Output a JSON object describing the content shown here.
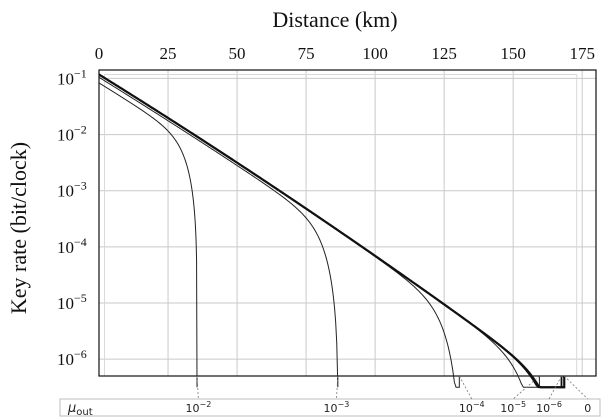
{
  "chart_data": {
    "type": "line",
    "xlabel": "Distance (km)",
    "ylabel": "Key rate (bit/clock)",
    "xlim": [
      0,
      180
    ],
    "ylim_log10": [
      -6.3,
      -0.85
    ],
    "log_y": true,
    "grid": true,
    "xticks": [
      "0",
      "25",
      "50",
      "75",
      "100",
      "125",
      "150",
      "175"
    ],
    "xtick_values": [
      0,
      25,
      50,
      75,
      100,
      125,
      150,
      175
    ],
    "ytick_exponents": [
      -1,
      -2,
      -3,
      -4,
      -5,
      -6
    ],
    "ytick_base": "10",
    "strip_label_base": "μ",
    "strip_label_sub": "out",
    "series": [
      {
        "label_base": "10",
        "label_exp": "−2",
        "color": "#222222",
        "x_cut": 35.5,
        "start_log": -1.08,
        "scale": 1.0,
        "width": 1.0,
        "label_x": 36
      },
      {
        "label_base": "10",
        "label_exp": "−3",
        "color": "#222222",
        "x_cut": 86.5,
        "start_log": -0.98,
        "scale": 1.0,
        "width": 1.0,
        "label_x": 86
      },
      {
        "label_base": "10",
        "label_exp": "−4",
        "color": "#222222",
        "x_cut": 130.5,
        "start_log": -0.94,
        "scale": 1.0,
        "width": 1.0,
        "label_x": 135
      },
      {
        "label_base": "10",
        "label_exp": "−5",
        "color": "#222222",
        "x_cut": 159.5,
        "start_log": -0.93,
        "scale": 1.0,
        "width": 1.0,
        "label_x": 150
      },
      {
        "label_base": "10",
        "label_exp": "−6",
        "color": "#111111",
        "x_cut": 167.5,
        "start_log": -0.93,
        "scale": 1.0,
        "width": 1.8,
        "label_x": 163
      },
      {
        "label_base": "",
        "label_exp": "",
        "label_plain": "0",
        "color": "#111111",
        "x_cut": 168.5,
        "start_log": -0.93,
        "scale": 1.0,
        "width": 2.2,
        "label_x": 177
      }
    ]
  }
}
